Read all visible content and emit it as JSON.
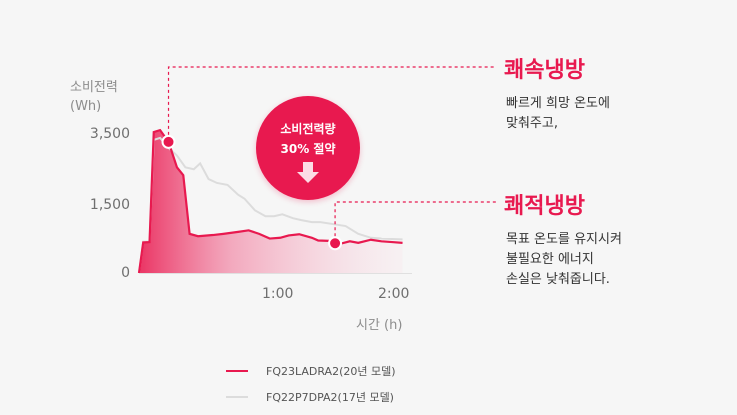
{
  "chart_data": {
    "type": "area",
    "ylabel_lines": [
      "소비전력",
      "(Wh)"
    ],
    "xlabel": "시간 (h)",
    "yticks": [
      "3,500",
      "1,500",
      "0"
    ],
    "ytick_values": [
      3500,
      1500,
      0
    ],
    "xticks": [
      "1:00",
      "2:00"
    ],
    "xtick_values": [
      60,
      120
    ],
    "xlim": [
      0,
      125
    ],
    "ylim": [
      0,
      3900
    ],
    "series": [
      {
        "name": "FQ23LADRA2(20년 모델)",
        "color": "#e8194f",
        "x": [
          0,
          2,
          5,
          7,
          10,
          14,
          18,
          21,
          24,
          28,
          35,
          40,
          47,
          52,
          57,
          62,
          67,
          71,
          76,
          82,
          85,
          90,
          95,
          100,
          104,
          110,
          115,
          120,
          125
        ],
        "y": [
          0,
          780,
          790,
          3600,
          3650,
          3350,
          2700,
          2500,
          1000,
          940,
          970,
          1000,
          1050,
          1090,
          1000,
          880,
          900,
          960,
          990,
          900,
          830,
          820,
          740,
          810,
          770,
          850,
          810,
          790,
          770
        ]
      },
      {
        "name": "FQ22P7DPA2(17년 모델)",
        "color": "#dedede",
        "x": [
          0,
          2,
          5,
          7,
          10,
          14,
          18,
          22,
          26,
          29,
          33,
          37,
          42,
          47,
          50,
          55,
          60,
          64,
          68,
          73,
          77,
          82,
          86,
          92,
          98,
          104,
          110,
          115,
          120,
          125
        ],
        "y": [
          0,
          800,
          800,
          3400,
          3450,
          3200,
          3000,
          2700,
          2650,
          2800,
          2400,
          2300,
          2250,
          2000,
          1900,
          1600,
          1450,
          1450,
          1500,
          1400,
          1350,
          1300,
          1300,
          1250,
          1200,
          1000,
          900,
          880,
          870,
          860
        ]
      }
    ],
    "annotations": [
      {
        "title": "쾌속냉방",
        "lines": [
          "빠르게 희망 온도에",
          "맞춰주고,"
        ]
      },
      {
        "title": "쾌적냉방",
        "lines": [
          "목표 온도를 유지시켜",
          "불필요한 에너지",
          "손실은 낮춰줍니다."
        ]
      }
    ],
    "badge": {
      "line1": "소비전력량",
      "line2": "30% 절약"
    },
    "markers": [
      {
        "x": 14,
        "y": 3350
      },
      {
        "x": 93,
        "y": 760
      }
    ],
    "accent_color": "#e8194f"
  }
}
